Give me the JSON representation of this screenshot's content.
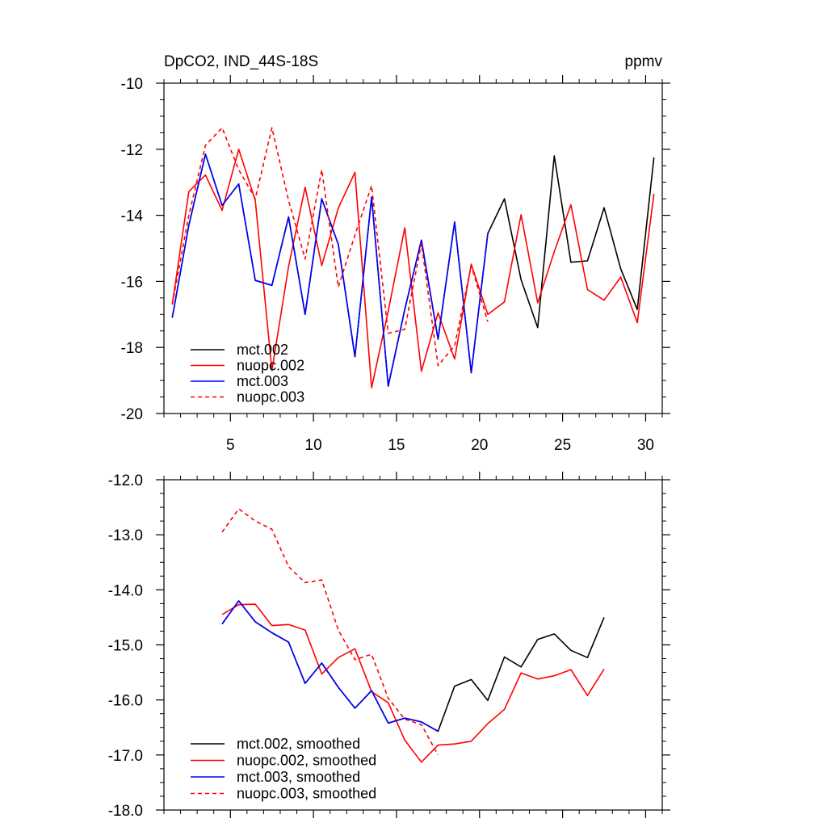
{
  "chart_data": [
    {
      "type": "line",
      "title": "DpCO2, IND_44S-18S",
      "units": "ppmv",
      "xlim": [
        1,
        31
      ],
      "ylim": [
        -20,
        -10
      ],
      "x_ticks": [
        5,
        10,
        15,
        20,
        25,
        30
      ],
      "x_tick_labels": [
        "5",
        "10",
        "15",
        "20",
        "25",
        "30"
      ],
      "y_ticks": [
        -20,
        -18,
        -16,
        -14,
        -12,
        -10
      ],
      "y_tick_labels": [
        "-20",
        "-18",
        "-16",
        "-14",
        "-12",
        "-10"
      ],
      "legend_position": "bottom-left",
      "series": [
        {
          "name": "mct.002",
          "color": "#000000",
          "dash": "solid",
          "x": [
            1.5,
            2.5,
            3.5,
            4.5,
            5.5,
            6.5,
            7.5,
            8.5,
            9.5,
            10.5,
            11.5,
            12.5,
            13.5,
            14.5,
            15.5,
            16.5,
            17.5,
            18.5,
            19.5,
            20.5,
            21.5,
            22.5,
            23.5,
            24.5,
            25.5,
            26.5,
            27.5,
            28.5,
            29.5,
            30.5
          ],
          "values": [
            -17.1,
            -14.3,
            -12.15,
            -13.7,
            -13.05,
            -15.97,
            -16.12,
            -14.05,
            -17.0,
            -13.5,
            -14.88,
            -18.28,
            -13.45,
            -19.17,
            -16.85,
            -14.75,
            -17.75,
            -14.2,
            -18.77,
            -14.55,
            -13.5,
            -15.95,
            -17.4,
            -12.2,
            -15.42,
            -15.38,
            -13.77,
            -15.62,
            -16.85,
            -12.25
          ]
        },
        {
          "name": "nuopc.002",
          "color": "#ff0000",
          "dash": "solid",
          "x": [
            1.5,
            2.5,
            3.5,
            4.5,
            5.5,
            6.5,
            7.5,
            8.5,
            9.5,
            10.5,
            11.5,
            12.5,
            13.5,
            14.5,
            15.5,
            16.5,
            17.5,
            18.5,
            19.5,
            20.5,
            21.5,
            22.5,
            23.5,
            24.5,
            25.5,
            26.5,
            27.5,
            28.5,
            29.5,
            30.5
          ],
          "values": [
            -16.7,
            -13.28,
            -12.78,
            -13.85,
            -12.0,
            -13.55,
            -18.7,
            -15.55,
            -13.15,
            -15.52,
            -13.78,
            -12.7,
            -19.22,
            -16.9,
            -14.38,
            -18.72,
            -16.95,
            -18.35,
            -15.48,
            -17.0,
            -16.62,
            -13.98,
            -16.65,
            -15.1,
            -13.68,
            -16.25,
            -16.57,
            -15.87,
            -17.25,
            -13.35
          ]
        },
        {
          "name": "mct.003",
          "color": "#0000ff",
          "dash": "solid",
          "x": [
            1.5,
            2.5,
            3.5,
            4.5,
            5.5,
            6.5,
            7.5,
            8.5,
            9.5,
            10.5,
            11.5,
            12.5,
            13.5,
            14.5,
            15.5,
            16.5,
            17.5,
            18.5,
            19.5,
            20.5
          ],
          "values": [
            -17.1,
            -14.3,
            -12.15,
            -13.7,
            -13.05,
            -15.97,
            -16.12,
            -14.05,
            -17.0,
            -13.5,
            -14.88,
            -18.28,
            -13.45,
            -19.17,
            -16.85,
            -14.75,
            -17.75,
            -14.2,
            -18.77,
            -14.55
          ]
        },
        {
          "name": "nuopc.003",
          "color": "#ff0000",
          "dash": "dashed",
          "x": [
            1.5,
            2.5,
            3.5,
            4.5,
            5.5,
            6.5,
            7.5,
            8.5,
            9.5,
            10.5,
            11.5,
            12.5,
            13.5,
            14.5,
            15.5,
            16.5,
            17.5,
            18.5,
            19.5,
            20.5
          ],
          "values": [
            -16.7,
            -14.0,
            -11.88,
            -11.35,
            -12.62,
            -13.5,
            -11.35,
            -13.55,
            -15.32,
            -12.62,
            -16.17,
            -14.6,
            -13.1,
            -17.57,
            -17.45,
            -14.85,
            -18.55,
            -17.95,
            -15.52,
            -17.22
          ]
        }
      ]
    },
    {
      "type": "line",
      "title": "",
      "xlim": [
        1,
        31
      ],
      "ylim": [
        -18,
        -12
      ],
      "x_ticks": [
        5,
        10,
        15,
        20,
        25,
        30
      ],
      "y_ticks": [
        -18,
        -17,
        -16,
        -15,
        -14,
        -13,
        -12
      ],
      "y_tick_labels": [
        "-18.0",
        "-17.0",
        "-16.0",
        "-15.0",
        "-14.0",
        "-13.0",
        "-12.0"
      ],
      "legend_position": "bottom-left",
      "series": [
        {
          "name": "mct.002, smoothed",
          "color": "#000000",
          "dash": "solid",
          "x": [
            4.5,
            5.5,
            6.5,
            7.5,
            8.5,
            9.5,
            10.5,
            11.5,
            12.5,
            13.5,
            14.5,
            15.5,
            16.5,
            17.5,
            18.5,
            19.5,
            20.5,
            21.5,
            22.5,
            23.5,
            24.5,
            25.5,
            26.5,
            27.5
          ],
          "values": [
            -14.62,
            -14.2,
            -14.58,
            -14.78,
            -14.95,
            -15.7,
            -15.33,
            -15.77,
            -16.15,
            -15.83,
            -16.42,
            -16.33,
            -16.4,
            -16.57,
            -15.75,
            -15.63,
            -16.01,
            -15.22,
            -15.4,
            -14.9,
            -14.8,
            -15.1,
            -15.23,
            -14.5
          ]
        },
        {
          "name": "nuopc.002, smoothed",
          "color": "#ff0000",
          "dash": "solid",
          "x": [
            4.5,
            5.5,
            6.5,
            7.5,
            8.5,
            9.5,
            10.5,
            11.5,
            12.5,
            13.5,
            14.5,
            15.5,
            16.5,
            17.5,
            18.5,
            19.5,
            20.5,
            21.5,
            22.5,
            23.5,
            24.5,
            25.5,
            26.5,
            27.5
          ],
          "values": [
            -14.45,
            -14.27,
            -14.26,
            -14.65,
            -14.63,
            -14.73,
            -15.53,
            -15.23,
            -15.07,
            -15.85,
            -16.05,
            -16.73,
            -17.13,
            -16.82,
            -16.8,
            -16.75,
            -16.43,
            -16.17,
            -15.51,
            -15.62,
            -15.56,
            -15.45,
            -15.92,
            -15.44
          ]
        },
        {
          "name": "mct.003, smoothed",
          "color": "#0000ff",
          "dash": "solid",
          "x": [
            4.5,
            5.5,
            6.5,
            7.5,
            8.5,
            9.5,
            10.5,
            11.5,
            12.5,
            13.5,
            14.5,
            15.5,
            16.5,
            17.5
          ],
          "values": [
            -14.62,
            -14.2,
            -14.58,
            -14.78,
            -14.95,
            -15.7,
            -15.33,
            -15.77,
            -16.15,
            -15.83,
            -16.42,
            -16.33,
            -16.4,
            -16.57
          ]
        },
        {
          "name": "nuopc.003, smoothed",
          "color": "#ff0000",
          "dash": "dashed",
          "x": [
            4.5,
            5.5,
            6.5,
            7.5,
            8.5,
            9.5,
            10.5,
            11.5,
            12.5,
            13.5,
            14.5,
            15.5,
            16.5,
            17.5
          ],
          "values": [
            -12.95,
            -12.53,
            -12.75,
            -12.9,
            -13.58,
            -13.87,
            -13.82,
            -14.73,
            -15.27,
            -15.17,
            -15.97,
            -16.35,
            -16.45,
            -17.0
          ]
        }
      ]
    }
  ]
}
